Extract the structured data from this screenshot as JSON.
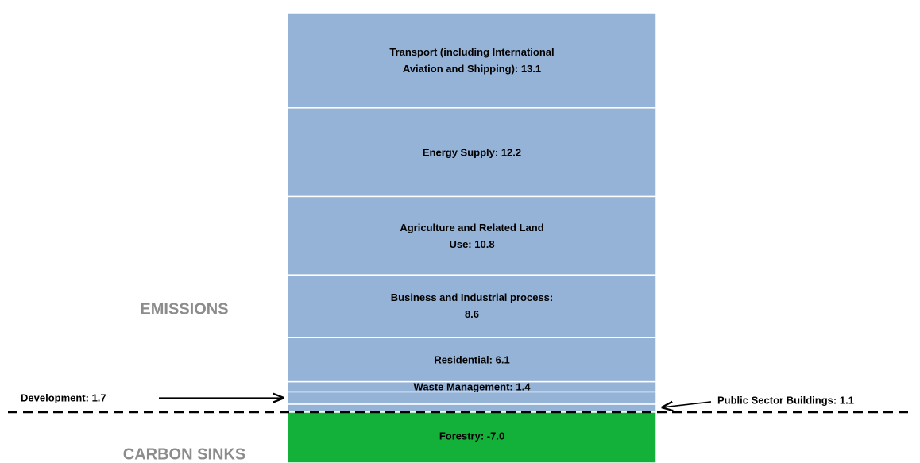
{
  "chart_data": {
    "type": "stacked-column",
    "segments": [
      {
        "label": "Public Sector Buildings: 1.1",
        "value": 1.1,
        "color": "#95b3d7",
        "label_position": "right"
      },
      {
        "label": "Development: 1.7",
        "value": 1.7,
        "color": "#95b3d7",
        "label_position": "left"
      },
      {
        "label": "Waste Management: 1.4",
        "value": 1.4,
        "color": "#95b3d7",
        "label_position": "inside"
      },
      {
        "label": "Residential: 6.1",
        "value": 6.1,
        "color": "#95b3d7",
        "label_position": "inside"
      },
      {
        "label": "Business and Industrial process: 8.6",
        "value": 8.6,
        "color": "#95b3d7",
        "label_position": "inside"
      },
      {
        "label": "Agriculture and Related Land Use: 10.8",
        "value": 10.8,
        "color": "#95b3d7",
        "label_position": "inside"
      },
      {
        "label": "Energy Supply: 12.2",
        "value": 12.2,
        "color": "#95b3d7",
        "label_position": "inside"
      },
      {
        "label": "Transport (including International Aviation and Shipping): 13.1",
        "value": 13.1,
        "color": "#95b3d7",
        "label_position": "inside"
      },
      {
        "label": "Forestry: -7.0",
        "value": -7.0,
        "color": "#14b13a",
        "label_position": "inside"
      }
    ],
    "annotations": {
      "above": "EMISSIONS",
      "below": "CARBON SINKS"
    },
    "ylim": [
      -7,
      55
    ]
  }
}
